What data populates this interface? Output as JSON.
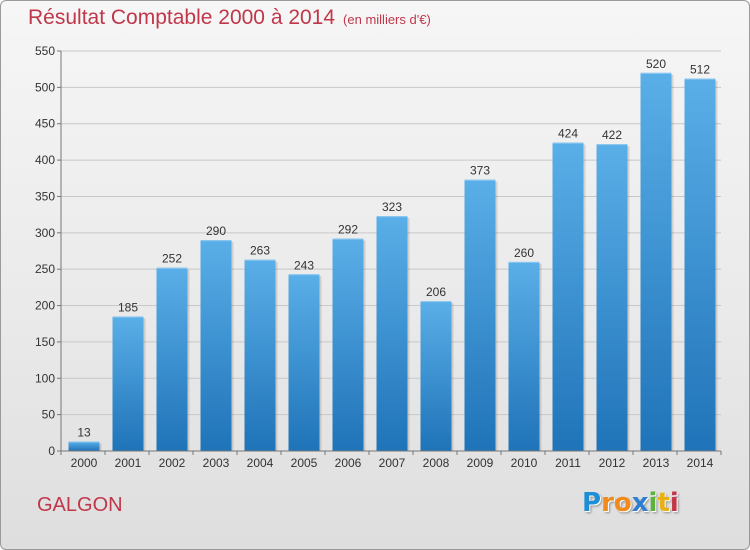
{
  "title": "Résultat Comptable 2000 à 2014",
  "subtitle": "(en milliers d'€)",
  "commune": "GALGON",
  "logo": {
    "text": "Proxiti",
    "letters": [
      {
        "char": "P",
        "color": "#1e8fd6"
      },
      {
        "char": "r",
        "color": "#f08a1a"
      },
      {
        "char": "o",
        "color": "#f08a1a"
      },
      {
        "char": "x",
        "color": "#2f7fd0"
      },
      {
        "char": "i",
        "color": "#5db33a"
      },
      {
        "char": "t",
        "color": "#e8b012"
      },
      {
        "char": "i",
        "color": "#c0374a"
      }
    ]
  },
  "colors": {
    "title": "#c0374a",
    "bar_top": "#5aafe8",
    "bar_bottom": "#1f73b8"
  },
  "chart_data": {
    "type": "bar",
    "categories": [
      "2000",
      "2001",
      "2002",
      "2003",
      "2004",
      "2005",
      "2006",
      "2007",
      "2008",
      "2009",
      "2010",
      "2011",
      "2012",
      "2013",
      "2014"
    ],
    "values": [
      13,
      185,
      252,
      290,
      263,
      243,
      292,
      323,
      206,
      373,
      260,
      424,
      422,
      520,
      512
    ],
    "ylim": [
      0,
      550
    ],
    "yticks": [
      0,
      50,
      100,
      150,
      200,
      250,
      300,
      350,
      400,
      450,
      500,
      550
    ],
    "grid": true,
    "data_labels": true
  }
}
